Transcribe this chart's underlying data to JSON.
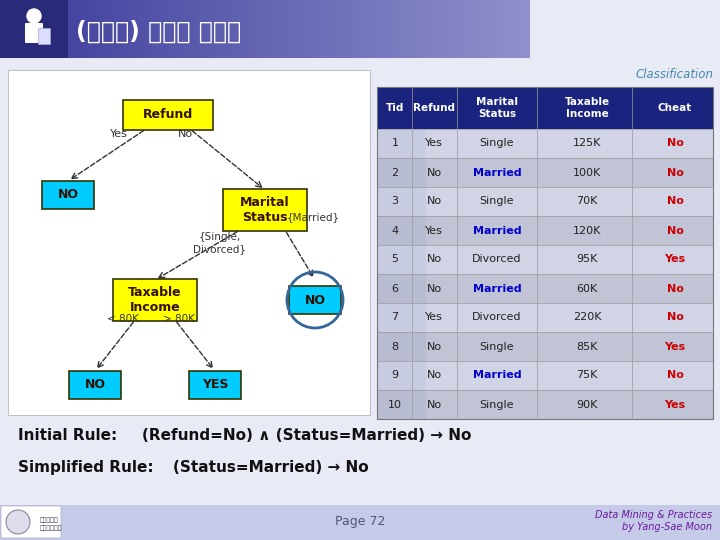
{
  "title": "(생성된) 규칙의 단순화",
  "subtitle": "Classification",
  "table_data": [
    [
      "1",
      "Yes",
      "Single",
      "125K",
      "No"
    ],
    [
      "2",
      "No",
      "Married",
      "100K",
      "No"
    ],
    [
      "3",
      "No",
      "Single",
      "70K",
      "No"
    ],
    [
      "4",
      "Yes",
      "Married",
      "120K",
      "No"
    ],
    [
      "5",
      "No",
      "Divorced",
      "95K",
      "Yes"
    ],
    [
      "6",
      "No",
      "Married",
      "60K",
      "No"
    ],
    [
      "7",
      "Yes",
      "Divorced",
      "220K",
      "No"
    ],
    [
      "8",
      "No",
      "Single",
      "85K",
      "Yes"
    ],
    [
      "9",
      "No",
      "Married",
      "75K",
      "No"
    ],
    [
      "10",
      "No",
      "Single",
      "90K",
      "Yes"
    ]
  ],
  "married_rows": [
    1,
    3,
    5,
    8
  ],
  "page_text": "Page 72",
  "footer_text": "Data Mining & Practices\nby Yang-Sae Moon",
  "footer_color": "#6a1b9a",
  "initial_rule": "(Refund=No) ∧ (Status=Married) → No",
  "simplified_rule": "(Status=Married) → No",
  "node_yellow": "#ffff00",
  "node_cyan": "#00ccff",
  "node_text_dark": "#331100",
  "node_text_white": "#ffffff",
  "tree_bg": "#ffffff",
  "slide_bg": "#e8eaf6",
  "title_bar_left": "#3a3a9a",
  "title_bar_right": "#9090cc",
  "table_header_bg": "#1a237e",
  "table_row_light": "#c8ccd8",
  "table_row_dark": "#b8bcc8",
  "table_tid_bg": "#d0d4e0",
  "married_color": "#0000cc",
  "cheat_color": "#cc0000",
  "circle_color": "#336699"
}
